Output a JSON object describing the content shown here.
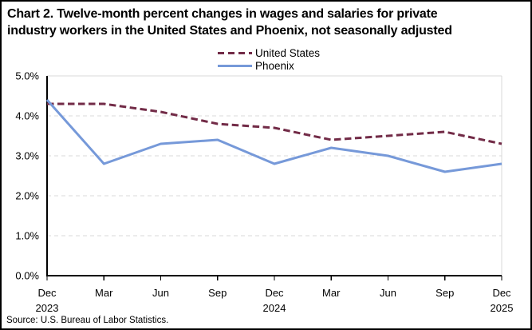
{
  "title": {
    "line1": "Chart 2. Twelve-month percent changes in wages and salaries for private",
    "line2": "industry workers in the United States and Phoenix, not seasonally adjusted"
  },
  "source": "Source: U.S. Bureau of Labor Statistics.",
  "chart_data": {
    "type": "line",
    "title": "Chart 2. Twelve-month percent changes in wages and salaries for private industry workers in the United States and Phoenix, not seasonally adjusted",
    "x_ticks": [
      {
        "month": "Dec",
        "year": "2023"
      },
      {
        "month": "Mar",
        "year": ""
      },
      {
        "month": "Jun",
        "year": ""
      },
      {
        "month": "Sep",
        "year": ""
      },
      {
        "month": "Dec",
        "year": "2024"
      },
      {
        "month": "Mar",
        "year": ""
      },
      {
        "month": "Jun",
        "year": ""
      },
      {
        "month": "Sep",
        "year": ""
      },
      {
        "month": "Dec",
        "year": "2025"
      }
    ],
    "categories": [
      "Dec 2023",
      "Mar 2024",
      "Jun 2024",
      "Sep 2024",
      "Dec 2024",
      "Mar 2025",
      "Jun 2025",
      "Sep 2025",
      "Dec 2025"
    ],
    "series": [
      {
        "name": "United States",
        "values": [
          4.3,
          4.3,
          4.1,
          3.8,
          3.7,
          3.4,
          3.5,
          3.6,
          3.3
        ],
        "color": "#722B47",
        "dash": "8.5 4.5"
      },
      {
        "name": "Phoenix",
        "values": [
          4.4,
          2.8,
          3.3,
          3.4,
          2.8,
          3.2,
          3.0,
          2.6,
          2.8
        ],
        "color": "#7699D9",
        "dash": ""
      }
    ],
    "ylim": [
      0,
      5
    ],
    "y_tick_labels": [
      "0.0%",
      "1.0%",
      "2.0%",
      "3.0%",
      "4.0%",
      "5.0%"
    ],
    "xlabel": "",
    "ylabel": "",
    "grid": true,
    "gridline_color": "#D9D9D9",
    "axis_color": "#000000",
    "legend_position": "top-center"
  }
}
